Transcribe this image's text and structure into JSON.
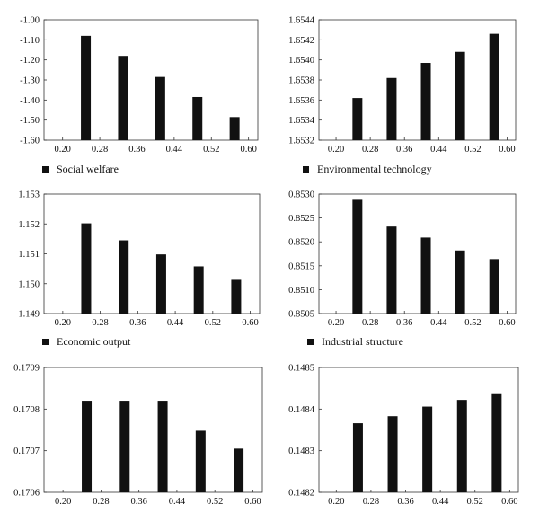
{
  "chart_data": [
    {
      "type": "bar",
      "title": "",
      "xlabel": "",
      "ylabel": "",
      "x_ticks": [
        "0.20",
        "0.28",
        "0.36",
        "0.44",
        "0.52",
        "0.60"
      ],
      "xlim": [
        0.16,
        0.62
      ],
      "ylim": [
        -1.6,
        -1.0
      ],
      "y_ticks": [
        "-1.00",
        "-1.10",
        "-1.20",
        "-1.30",
        "-1.40",
        "-1.50",
        "-1.60"
      ],
      "legend": "bottom-left",
      "grid": false,
      "series": [
        {
          "name": "Social welfare",
          "color": "#111111",
          "x": [
            0.25,
            0.33,
            0.41,
            0.49,
            0.57
          ],
          "values": [
            -1.08,
            -1.18,
            -1.285,
            -1.385,
            -1.485
          ]
        }
      ]
    },
    {
      "type": "bar",
      "title": "",
      "xlabel": "",
      "ylabel": "",
      "x_ticks": [
        "0.20",
        "0.28",
        "0.36",
        "0.44",
        "0.52",
        "0.60"
      ],
      "xlim": [
        0.16,
        0.62
      ],
      "ylim": [
        1.6532,
        1.6544
      ],
      "y_ticks": [
        "1.6544",
        "1.6542",
        "1.6540",
        "1.6538",
        "1.6536",
        "1.6534",
        "1.6532"
      ],
      "legend": "bottom-left",
      "grid": false,
      "series": [
        {
          "name": "Environmental technology",
          "color": "#111111",
          "x": [
            0.25,
            0.33,
            0.41,
            0.49,
            0.57
          ],
          "values": [
            1.65362,
            1.65382,
            1.65397,
            1.65408,
            1.65426
          ]
        }
      ]
    },
    {
      "type": "bar",
      "title": "",
      "xlabel": "",
      "ylabel": "",
      "x_ticks": [
        "0.20",
        "0.28",
        "0.36",
        "0.44",
        "0.52",
        "0.60"
      ],
      "xlim": [
        0.16,
        0.62
      ],
      "ylim": [
        1.149,
        1.153
      ],
      "y_ticks": [
        "1.153",
        "1.152",
        "1.151",
        "1.150",
        "1.149"
      ],
      "legend": "bottom-left",
      "grid": false,
      "series": [
        {
          "name": "Economic output",
          "color": "#111111",
          "x": [
            0.25,
            0.33,
            0.41,
            0.49,
            0.57
          ],
          "values": [
            1.15202,
            1.15145,
            1.15098,
            1.15058,
            1.15013
          ]
        }
      ]
    },
    {
      "type": "bar",
      "title": "",
      "xlabel": "",
      "ylabel": "",
      "x_ticks": [
        "0.20",
        "0.28",
        "0.36",
        "0.44",
        "0.52",
        "0.60"
      ],
      "xlim": [
        0.16,
        0.62
      ],
      "ylim": [
        0.8505,
        0.853
      ],
      "y_ticks": [
        "0.8530",
        "0.8525",
        "0.8520",
        "0.8515",
        "0.8510",
        "0.8505"
      ],
      "legend": "bottom-left",
      "grid": false,
      "series": [
        {
          "name": "Industrial structure",
          "color": "#111111",
          "x": [
            0.25,
            0.33,
            0.41,
            0.49,
            0.57
          ],
          "values": [
            0.85288,
            0.85232,
            0.85209,
            0.85182,
            0.85164
          ]
        }
      ]
    },
    {
      "type": "bar",
      "title": "",
      "xlabel": "",
      "ylabel": "",
      "x_ticks": [
        "0.20",
        "0.28",
        "0.36",
        "0.44",
        "0.52",
        "0.60"
      ],
      "xlim": [
        0.16,
        0.62
      ],
      "ylim": [
        0.1706,
        0.1709
      ],
      "y_ticks": [
        "0.1709",
        "0.1708",
        "0.1707",
        "0.1706"
      ],
      "legend": "none",
      "grid": false,
      "series": [
        {
          "name": "",
          "color": "#111111",
          "x": [
            0.25,
            0.33,
            0.41,
            0.49,
            0.57
          ],
          "values": [
            0.17082,
            0.17082,
            0.17082,
            0.170748,
            0.170705
          ]
        }
      ]
    },
    {
      "type": "bar",
      "title": "",
      "xlabel": "",
      "ylabel": "",
      "x_ticks": [
        "0.20",
        "0.28",
        "0.36",
        "0.44",
        "0.52",
        "0.60"
      ],
      "xlim": [
        0.16,
        0.62
      ],
      "ylim": [
        0.1482,
        0.1485
      ],
      "y_ticks": [
        "0.1485",
        "0.1484",
        "0.1483",
        "0.1482"
      ],
      "legend": "none",
      "grid": false,
      "series": [
        {
          "name": "",
          "color": "#111111",
          "x": [
            0.25,
            0.33,
            0.41,
            0.49,
            0.57
          ],
          "values": [
            0.148366,
            0.148383,
            0.148406,
            0.148422,
            0.148438
          ]
        }
      ]
    }
  ]
}
